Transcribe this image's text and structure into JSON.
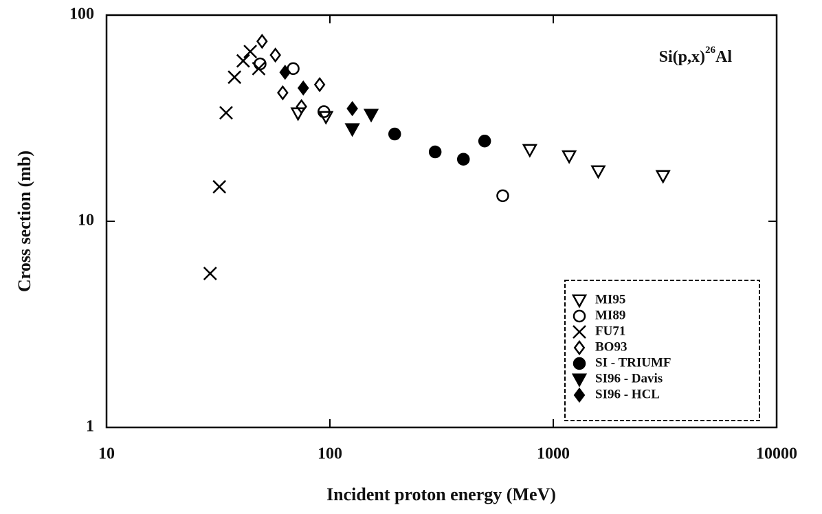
{
  "chart_data": {
    "type": "scatter",
    "xlabel": "Incident proton energy (MeV)",
    "ylabel": "Cross section (mb)",
    "annotation": {
      "base": "Si(p,x)",
      "sup": "26",
      "tail": "Al"
    },
    "xscale": "log",
    "yscale": "log",
    "xlim": [
      10,
      10000
    ],
    "ylim": [
      1,
      100
    ],
    "xticks": [
      10,
      100,
      1000,
      10000
    ],
    "yticks": [
      1,
      10,
      100
    ],
    "legend": "lower right",
    "series": [
      {
        "name": "MI95",
        "marker": "triangle-down",
        "filled": false,
        "color": "#000000",
        "x": [
          785,
          1178,
          1590,
          3100,
          72,
          96
        ],
        "values": [
          22.2,
          20.7,
          17.5,
          16.6,
          33.4,
          32.1
        ]
      },
      {
        "name": "MI89",
        "marker": "circle",
        "filled": false,
        "color": "#000000",
        "x": [
          594,
          48.7,
          68.5,
          94
        ],
        "values": [
          13.3,
          58,
          55,
          34
        ]
      },
      {
        "name": "FU71",
        "marker": "x",
        "filled": false,
        "color": "#000000",
        "x": [
          29.1,
          32,
          34.3,
          37.4,
          40.9,
          44,
          48
        ],
        "values": [
          5.58,
          14.7,
          33.6,
          50,
          60,
          66.6,
          55
        ]
      },
      {
        "name": "BO93",
        "marker": "diamond",
        "filled": false,
        "color": "#000000",
        "x": [
          49.7,
          61.5,
          74.6,
          90,
          57
        ],
        "values": [
          74.6,
          42,
          36,
          46,
          64
        ]
      },
      {
        "name": "SI - TRIUMF",
        "marker": "circle",
        "filled": true,
        "color": "#000000",
        "x": [
          195,
          296,
          396,
          493
        ],
        "values": [
          26.5,
          21.7,
          20,
          24.5
        ]
      },
      {
        "name": "SI96 - Davis",
        "marker": "triangle-down",
        "filled": true,
        "color": "#000000",
        "x": [
          126,
          153
        ],
        "values": [
          28,
          32.9
        ]
      },
      {
        "name": "SI96 - HCL",
        "marker": "diamond",
        "filled": true,
        "color": "#000000",
        "x": [
          76,
          126,
          63
        ],
        "values": [
          44.3,
          35.2,
          52.8
        ]
      }
    ]
  }
}
